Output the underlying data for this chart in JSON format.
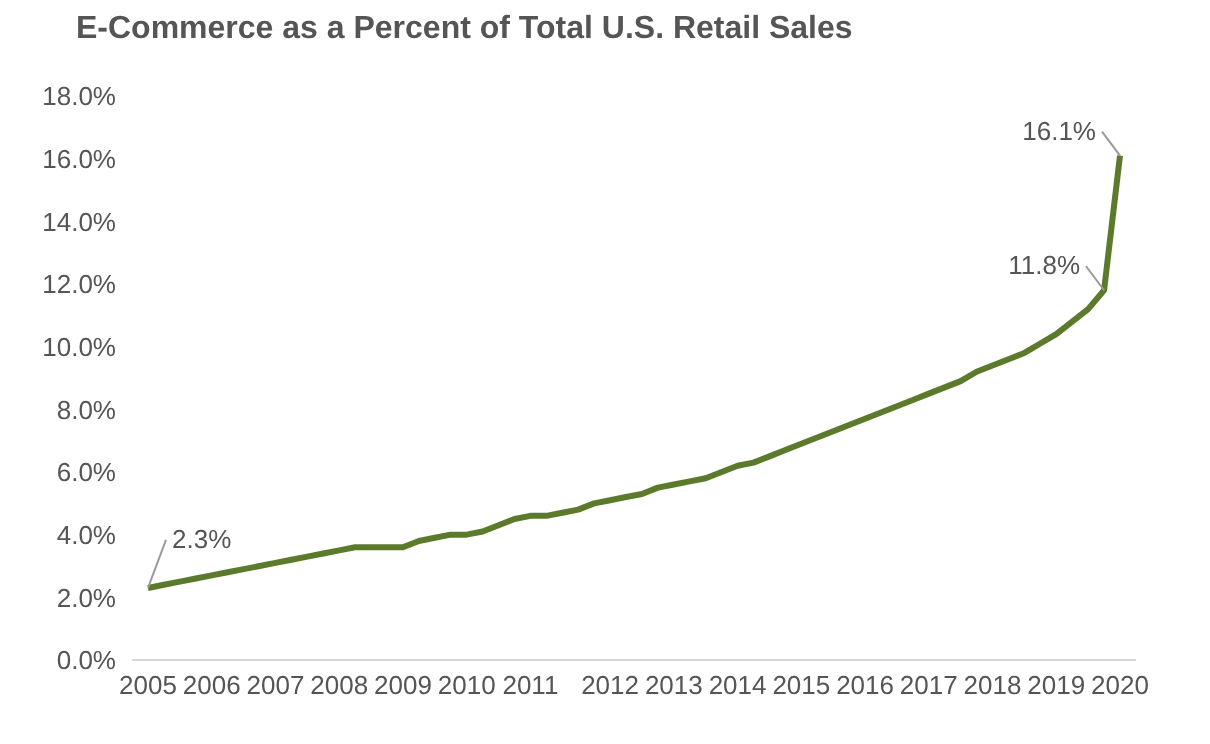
{
  "chart_data": {
    "type": "line",
    "title": "E-Commerce as a Percent of Total U.S. Retail Sales",
    "categories": [
      "2005",
      null,
      null,
      null,
      "2006",
      null,
      null,
      null,
      "2007",
      null,
      null,
      null,
      "2008",
      null,
      null,
      null,
      "2009",
      null,
      null,
      null,
      "2010",
      null,
      null,
      null,
      "2011",
      null,
      null,
      null,
      null,
      "2012",
      null,
      null,
      null,
      "2013",
      null,
      null,
      null,
      "2014",
      null,
      null,
      null,
      "2015",
      null,
      null,
      null,
      "2016",
      null,
      null,
      null,
      "2017",
      null,
      null,
      null,
      "2018",
      null,
      null,
      null,
      "2019",
      null,
      null,
      null,
      "2020"
    ],
    "series": [
      {
        "color": "#5b7a2b",
        "values": [
          2.3,
          2.4,
          2.5,
          2.6,
          2.7,
          2.8,
          2.9,
          3.0,
          3.1,
          3.2,
          3.3,
          3.4,
          3.5,
          3.6,
          3.6,
          3.6,
          3.6,
          3.8,
          3.9,
          4.0,
          4.0,
          4.1,
          4.3,
          4.5,
          4.6,
          4.6,
          4.7,
          4.8,
          5.0,
          5.1,
          5.2,
          5.3,
          5.5,
          5.6,
          5.7,
          5.8,
          6.0,
          6.2,
          6.3,
          6.5,
          6.7,
          6.9,
          7.1,
          7.3,
          7.5,
          7.7,
          7.9,
          8.1,
          8.3,
          8.5,
          8.7,
          8.9,
          9.2,
          9.4,
          9.6,
          9.8,
          10.1,
          10.4,
          10.8,
          11.2,
          11.8,
          16.1
        ],
        "value_labels": [
          "2.3%",
          null,
          null,
          null,
          null,
          null,
          null,
          null,
          null,
          null,
          null,
          null,
          null,
          null,
          null,
          null,
          null,
          null,
          null,
          null,
          null,
          null,
          null,
          null,
          null,
          null,
          null,
          null,
          null,
          null,
          null,
          null,
          null,
          null,
          null,
          null,
          null,
          null,
          null,
          null,
          null,
          null,
          null,
          null,
          null,
          null,
          null,
          null,
          null,
          null,
          null,
          null,
          null,
          null,
          null,
          null,
          null,
          null,
          null,
          null,
          "11.8%",
          "16.1%"
        ]
      }
    ],
    "ylim": [
      0,
      18
    ],
    "yticks": [
      {
        "value": 0,
        "label": "0.0%"
      },
      {
        "value": 2,
        "label": "2.0%"
      },
      {
        "value": 4,
        "label": "4.0%"
      },
      {
        "value": 6,
        "label": "6.0%"
      },
      {
        "value": 8,
        "label": "8.0%"
      },
      {
        "value": 10,
        "label": "10.0%"
      },
      {
        "value": 12,
        "label": "12.0%"
      },
      {
        "value": 14,
        "label": "14.0%"
      },
      {
        "value": 16,
        "label": "16.0%"
      },
      {
        "value": 18,
        "label": "18.0%"
      }
    ],
    "grid": false,
    "legend": false,
    "marker": "none",
    "line_style": "solid"
  }
}
